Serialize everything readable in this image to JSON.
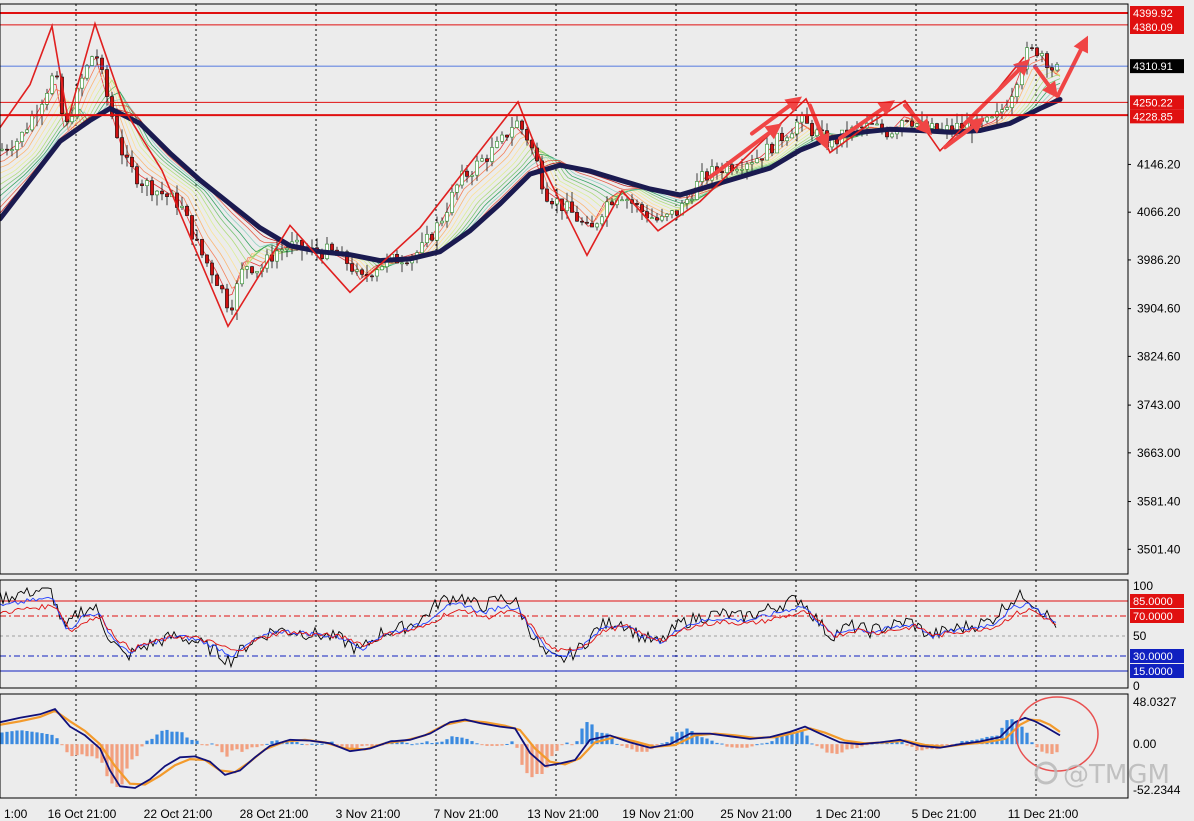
{
  "chart_data": {
    "type": "candlestick",
    "main": {
      "ylim": [
        3460,
        4415
      ],
      "tick_labels": [
        "4146.20",
        "4066.20",
        "3986.20",
        "3904.60",
        "3824.60",
        "3743.00",
        "3663.00",
        "3581.40",
        "3501.40"
      ],
      "hlines": [
        {
          "value": 4399.92,
          "label": "4399.92",
          "color": "#e01010",
          "width": 2
        },
        {
          "value": 4380.09,
          "label": "4380.09",
          "color": "#e01010",
          "width": 1
        },
        {
          "value": 4250.22,
          "label": "4250.22",
          "color": "#e01010",
          "width": 1
        },
        {
          "value": 4228.85,
          "label": "4228.85",
          "color": "#e01010",
          "width": 2
        }
      ],
      "current_price": {
        "value": 4310.91,
        "label": "4310.91",
        "color": "#2255dd"
      },
      "close_path": [
        [
          0,
          4170
        ],
        [
          20,
          4190
        ],
        [
          40,
          4250
        ],
        [
          55,
          4300
        ],
        [
          65,
          4200
        ],
        [
          80,
          4280
        ],
        [
          95,
          4340
        ],
        [
          110,
          4240
        ],
        [
          125,
          4150
        ],
        [
          140,
          4120
        ],
        [
          160,
          4100
        ],
        [
          180,
          4080
        ],
        [
          200,
          4000
        ],
        [
          215,
          3960
        ],
        [
          230,
          3905
        ],
        [
          245,
          3980
        ],
        [
          260,
          3970
        ],
        [
          275,
          4000
        ],
        [
          290,
          4010
        ],
        [
          310,
          4000
        ],
        [
          330,
          4000
        ],
        [
          350,
          3980
        ],
        [
          360,
          3950
        ],
        [
          375,
          3975
        ],
        [
          400,
          3990
        ],
        [
          420,
          4000
        ],
        [
          440,
          4050
        ],
        [
          460,
          4120
        ],
        [
          480,
          4150
        ],
        [
          500,
          4180
        ],
        [
          515,
          4220
        ],
        [
          525,
          4200
        ],
        [
          535,
          4160
        ],
        [
          545,
          4100
        ],
        [
          560,
          4080
        ],
        [
          575,
          4060
        ],
        [
          590,
          4030
        ],
        [
          605,
          4080
        ],
        [
          620,
          4100
        ],
        [
          640,
          4070
        ],
        [
          660,
          4050
        ],
        [
          680,
          4070
        ],
        [
          700,
          4120
        ],
        [
          720,
          4140
        ],
        [
          740,
          4150
        ],
        [
          760,
          4160
        ],
        [
          780,
          4190
        ],
        [
          800,
          4220
        ],
        [
          815,
          4200
        ],
        [
          830,
          4180
        ],
        [
          850,
          4200
        ],
        [
          870,
          4210
        ],
        [
          890,
          4200
        ],
        [
          905,
          4230
        ],
        [
          920,
          4210
        ],
        [
          940,
          4200
        ],
        [
          960,
          4210
        ],
        [
          980,
          4210
        ],
        [
          995,
          4220
        ],
        [
          1010,
          4260
        ],
        [
          1025,
          4330
        ],
        [
          1040,
          4340
        ],
        [
          1055,
          4300
        ],
        [
          1060,
          4310
        ]
      ],
      "ema_slow": [
        [
          0,
          4055
        ],
        [
          30,
          4120
        ],
        [
          60,
          4185
        ],
        [
          90,
          4220
        ],
        [
          110,
          4240
        ],
        [
          140,
          4215
        ],
        [
          170,
          4165
        ],
        [
          200,
          4120
        ],
        [
          230,
          4080
        ],
        [
          260,
          4040
        ],
        [
          290,
          4010
        ],
        [
          320,
          4000
        ],
        [
          350,
          3995
        ],
        [
          380,
          3985
        ],
        [
          410,
          3988
        ],
        [
          440,
          4000
        ],
        [
          470,
          4035
        ],
        [
          500,
          4080
        ],
        [
          530,
          4130
        ],
        [
          560,
          4145
        ],
        [
          590,
          4135
        ],
        [
          620,
          4120
        ],
        [
          650,
          4105
        ],
        [
          680,
          4095
        ],
        [
          710,
          4110
        ],
        [
          740,
          4125
        ],
        [
          770,
          4140
        ],
        [
          800,
          4170
        ],
        [
          830,
          4190
        ],
        [
          860,
          4200
        ],
        [
          890,
          4205
        ],
        [
          920,
          4203
        ],
        [
          950,
          4200
        ],
        [
          980,
          4203
        ],
        [
          1010,
          4215
        ],
        [
          1040,
          4240
        ],
        [
          1060,
          4255
        ]
      ],
      "zigzag": [
        [
          0,
          4208
        ],
        [
          30,
          4280
        ],
        [
          52,
          4378
        ],
        [
          68,
          4222
        ],
        [
          95,
          4382
        ],
        [
          125,
          4236
        ],
        [
          162,
          4136
        ],
        [
          228,
          3875
        ],
        [
          290,
          4044
        ],
        [
          350,
          3932
        ],
        [
          420,
          4040
        ],
        [
          518,
          4251
        ],
        [
          545,
          4135
        ],
        [
          587,
          3994
        ],
        [
          622,
          4102
        ],
        [
          658,
          4035
        ],
        [
          700,
          4084
        ],
        [
          806,
          4256
        ],
        [
          830,
          4166
        ],
        [
          870,
          4215
        ],
        [
          905,
          4253
        ],
        [
          940,
          4169
        ],
        [
          985,
          4246
        ],
        [
          1024,
          4326
        ]
      ],
      "arrows": [
        [
          [
            710,
            4125
          ],
          [
            782,
            4215
          ]
        ],
        [
          [
            752,
            4198
          ],
          [
            802,
            4260
          ]
        ],
        [
          [
            810,
            4245
          ],
          [
            828,
            4170
          ]
        ],
        [
          [
            840,
            4190
          ],
          [
            895,
            4254
          ]
        ],
        [
          [
            905,
            4245
          ],
          [
            932,
            4195
          ]
        ],
        [
          [
            945,
            4175
          ],
          [
            985,
            4225
          ]
        ],
        [
          [
            965,
            4215
          ],
          [
            1030,
            4323
          ]
        ],
        [
          [
            1035,
            4310
          ],
          [
            1058,
            4257
          ]
        ],
        [
          [
            1058,
            4262
          ],
          [
            1088,
            4362
          ]
        ]
      ]
    },
    "oscillator": {
      "type": "line",
      "ylim": [
        0,
        100
      ],
      "tick_labels": [
        "100",
        "50",
        "0"
      ],
      "levels": [
        {
          "value": 85.0,
          "label": "85.0000",
          "color": "#e01010"
        },
        {
          "value": 70.0,
          "label": "70.0000",
          "color": "#e01010"
        },
        {
          "value": 30.0,
          "label": "30.0000",
          "color": "#1020c0"
        },
        {
          "value": 15.0,
          "label": "15.0000",
          "color": "#1020c0"
        }
      ],
      "series_path": [
        [
          0,
          80
        ],
        [
          25,
          85
        ],
        [
          50,
          88
        ],
        [
          65,
          55
        ],
        [
          80,
          70
        ],
        [
          95,
          73
        ],
        [
          110,
          48
        ],
        [
          125,
          33
        ],
        [
          140,
          40
        ],
        [
          155,
          45
        ],
        [
          175,
          50
        ],
        [
          195,
          46
        ],
        [
          215,
          38
        ],
        [
          230,
          30
        ],
        [
          250,
          45
        ],
        [
          275,
          55
        ],
        [
          300,
          53
        ],
        [
          320,
          51
        ],
        [
          340,
          48
        ],
        [
          360,
          38
        ],
        [
          380,
          52
        ],
        [
          400,
          56
        ],
        [
          420,
          62
        ],
        [
          440,
          78
        ],
        [
          460,
          82
        ],
        [
          480,
          73
        ],
        [
          500,
          80
        ],
        [
          515,
          78
        ],
        [
          530,
          55
        ],
        [
          545,
          35
        ],
        [
          560,
          30
        ],
        [
          580,
          40
        ],
        [
          600,
          58
        ],
        [
          620,
          62
        ],
        [
          640,
          50
        ],
        [
          660,
          44
        ],
        [
          680,
          60
        ],
        [
          700,
          65
        ],
        [
          720,
          68
        ],
        [
          740,
          65
        ],
        [
          760,
          69
        ],
        [
          780,
          75
        ],
        [
          800,
          80
        ],
        [
          815,
          65
        ],
        [
          830,
          50
        ],
        [
          850,
          58
        ],
        [
          870,
          54
        ],
        [
          890,
          58
        ],
        [
          910,
          62
        ],
        [
          930,
          50
        ],
        [
          950,
          55
        ],
        [
          970,
          58
        ],
        [
          990,
          62
        ],
        [
          1010,
          78
        ],
        [
          1025,
          83
        ],
        [
          1040,
          72
        ],
        [
          1055,
          60
        ]
      ]
    },
    "macd": {
      "type": "bar+line",
      "ylim": [
        -52.2344,
        48.0327
      ],
      "tick_labels": [
        "48.0327",
        "0.00",
        "-52.2344"
      ],
      "macd_path": [
        [
          0,
          25
        ],
        [
          20,
          30
        ],
        [
          40,
          34
        ],
        [
          55,
          40
        ],
        [
          70,
          20
        ],
        [
          85,
          10
        ],
        [
          100,
          -5
        ],
        [
          110,
          -30
        ],
        [
          120,
          -48
        ],
        [
          135,
          -50
        ],
        [
          150,
          -40
        ],
        [
          165,
          -25
        ],
        [
          180,
          -15
        ],
        [
          195,
          -14
        ],
        [
          210,
          -20
        ],
        [
          225,
          -35
        ],
        [
          240,
          -30
        ],
        [
          255,
          -15
        ],
        [
          270,
          -2
        ],
        [
          290,
          5
        ],
        [
          310,
          4
        ],
        [
          330,
          1
        ],
        [
          350,
          -8
        ],
        [
          370,
          -5
        ],
        [
          390,
          3
        ],
        [
          410,
          5
        ],
        [
          430,
          12
        ],
        [
          450,
          25
        ],
        [
          465,
          28
        ],
        [
          480,
          24
        ],
        [
          500,
          20
        ],
        [
          515,
          18
        ],
        [
          530,
          -10
        ],
        [
          545,
          -25
        ],
        [
          560,
          -22
        ],
        [
          575,
          -18
        ],
        [
          590,
          5
        ],
        [
          610,
          10
        ],
        [
          630,
          2
        ],
        [
          650,
          -4
        ],
        [
          670,
          0
        ],
        [
          690,
          12
        ],
        [
          710,
          12
        ],
        [
          730,
          9
        ],
        [
          750,
          6
        ],
        [
          770,
          8
        ],
        [
          790,
          14
        ],
        [
          805,
          20
        ],
        [
          820,
          12
        ],
        [
          840,
          2
        ],
        [
          860,
          0
        ],
        [
          880,
          2
        ],
        [
          900,
          5
        ],
        [
          920,
          -2
        ],
        [
          940,
          -4
        ],
        [
          960,
          0
        ],
        [
          980,
          3
        ],
        [
          1000,
          8
        ],
        [
          1015,
          25
        ],
        [
          1025,
          30
        ],
        [
          1035,
          26
        ],
        [
          1045,
          20
        ],
        [
          1060,
          10
        ]
      ],
      "signal_path": [
        [
          0,
          22
        ],
        [
          20,
          26
        ],
        [
          40,
          31
        ],
        [
          55,
          38
        ],
        [
          70,
          26
        ],
        [
          85,
          15
        ],
        [
          100,
          0
        ],
        [
          115,
          -25
        ],
        [
          130,
          -45
        ],
        [
          145,
          -46
        ],
        [
          160,
          -36
        ],
        [
          175,
          -24
        ],
        [
          190,
          -17
        ],
        [
          205,
          -18
        ],
        [
          220,
          -30
        ],
        [
          235,
          -32
        ],
        [
          250,
          -20
        ],
        [
          265,
          -6
        ],
        [
          285,
          3
        ],
        [
          305,
          5
        ],
        [
          325,
          2
        ],
        [
          345,
          -5
        ],
        [
          365,
          -6
        ],
        [
          385,
          1
        ],
        [
          405,
          4
        ],
        [
          425,
          10
        ],
        [
          445,
          22
        ],
        [
          465,
          27
        ],
        [
          485,
          25
        ],
        [
          505,
          21
        ],
        [
          520,
          16
        ],
        [
          535,
          -5
        ],
        [
          550,
          -20
        ],
        [
          565,
          -23
        ],
        [
          580,
          -16
        ],
        [
          595,
          2
        ],
        [
          615,
          8
        ],
        [
          635,
          3
        ],
        [
          655,
          -3
        ],
        [
          675,
          -1
        ],
        [
          695,
          10
        ],
        [
          715,
          12
        ],
        [
          735,
          10
        ],
        [
          755,
          7
        ],
        [
          775,
          8
        ],
        [
          795,
          13
        ],
        [
          810,
          18
        ],
        [
          825,
          13
        ],
        [
          845,
          4
        ],
        [
          865,
          1
        ],
        [
          885,
          2
        ],
        [
          905,
          4
        ],
        [
          925,
          -1
        ],
        [
          945,
          -3
        ],
        [
          965,
          0
        ],
        [
          985,
          2
        ],
        [
          1005,
          6
        ],
        [
          1020,
          22
        ],
        [
          1030,
          28
        ],
        [
          1040,
          27
        ],
        [
          1050,
          22
        ],
        [
          1060,
          14
        ]
      ]
    },
    "x_labels": [
      "1:00",
      "16 Oct 21:00",
      "22 Oct 21:00",
      "28 Oct 21:00",
      "3 Nov 21:00",
      "7 Nov 21:00",
      "13 Nov 21:00",
      "19 Nov 21:00",
      "25 Nov 21:00",
      "1 Dec 21:00",
      "5 Dec 21:00",
      "11 Dec 21:00"
    ]
  },
  "watermark": "@TMGM",
  "colors": {
    "background": "#ececec",
    "bull": "#2a8a2a",
    "bear": "#d01010",
    "ema": "#1a1a50",
    "zigzag": "#e02020",
    "arrow": "#f04545"
  }
}
